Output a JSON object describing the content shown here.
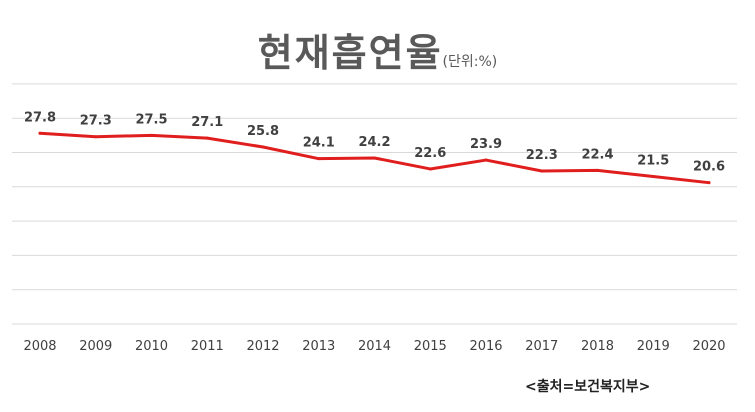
{
  "chart_data": {
    "type": "line",
    "title": "현재흡연율",
    "unit": "(단위:%)",
    "x": [
      "2008",
      "2009",
      "2010",
      "2011",
      "2012",
      "2013",
      "2014",
      "2015",
      "2016",
      "2017",
      "2018",
      "2019",
      "2020"
    ],
    "series": [
      {
        "values": [
          27.8,
          27.3,
          27.5,
          27.1,
          25.8,
          24.1,
          24.2,
          22.6,
          23.9,
          22.3,
          22.4,
          21.5,
          20.6
        ]
      }
    ],
    "ylim": [
      0,
      35
    ],
    "y_step": 5,
    "grid": true,
    "legend": "none",
    "line_color": "#e01e1e",
    "grid_color": "#d9d9d9",
    "label_color": "#404040",
    "source": "<출처=보건복지부>"
  }
}
